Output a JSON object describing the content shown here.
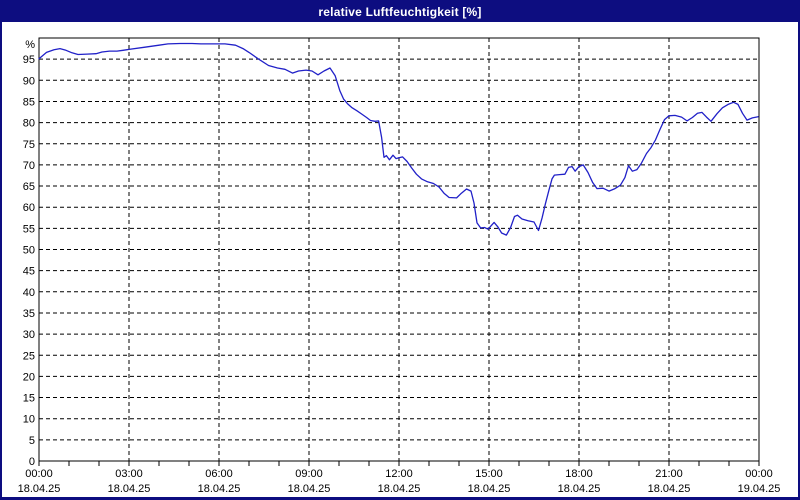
{
  "window": {
    "title": "relative Luftfeuchtigkeit [%]"
  },
  "colors": {
    "window_border": "#0d0d80",
    "titlebar_bg": "#0d0d80",
    "title_text": "#ffffff",
    "plot_bg": "#ffffff",
    "axis": "#000000",
    "grid": "#000000",
    "tick_label": "#000000",
    "line": "#2121c8"
  },
  "chart_data": {
    "type": "line",
    "title": "relative Luftfeuchtigkeit [%]",
    "ylabel": "%",
    "xlabel": "",
    "ylim": [
      0,
      100
    ],
    "xlim_hours": [
      0,
      24
    ],
    "grid": "dashed",
    "legend": "none",
    "y_ticks": [
      0,
      5,
      10,
      15,
      20,
      25,
      30,
      35,
      40,
      45,
      50,
      55,
      60,
      65,
      70,
      75,
      80,
      85,
      90,
      95
    ],
    "y_unit_label": "%",
    "x_minor_tick_hours": 1,
    "x_ticks": [
      {
        "hours": 0,
        "time": "00:00",
        "date": "18.04.25"
      },
      {
        "hours": 3,
        "time": "03:00",
        "date": "18.04.25"
      },
      {
        "hours": 6,
        "time": "06:00",
        "date": "18.04.25"
      },
      {
        "hours": 9,
        "time": "09:00",
        "date": "18.04.25"
      },
      {
        "hours": 12,
        "time": "12:00",
        "date": "18.04.25"
      },
      {
        "hours": 15,
        "time": "15:00",
        "date": "18.04.25"
      },
      {
        "hours": 18,
        "time": "18:00",
        "date": "18.04.25"
      },
      {
        "hours": 21,
        "time": "21:00",
        "date": "18.04.25"
      },
      {
        "hours": 24,
        "time": "00:00",
        "date": "19.04.25"
      }
    ],
    "series": [
      {
        "name": "relative Luftfeuchtigkeit",
        "color": "#2121c8",
        "points": [
          [
            0,
            95.1
          ],
          [
            0.25,
            96.6
          ],
          [
            0.5,
            97.2
          ],
          [
            0.7,
            97.5
          ],
          [
            0.9,
            97.1
          ],
          [
            1.1,
            96.5
          ],
          [
            1.3,
            96.1
          ],
          [
            1.6,
            96.2
          ],
          [
            1.9,
            96.3
          ],
          [
            2.1,
            96.7
          ],
          [
            2.35,
            96.9
          ],
          [
            2.6,
            96.9
          ],
          [
            2.8,
            97.1
          ],
          [
            3.0,
            97.3
          ],
          [
            3.5,
            97.8
          ],
          [
            4.0,
            98.3
          ],
          [
            4.3,
            98.6
          ],
          [
            4.7,
            98.7
          ],
          [
            5.1,
            98.7
          ],
          [
            5.4,
            98.6
          ],
          [
            5.8,
            98.6
          ],
          [
            6.2,
            98.6
          ],
          [
            6.55,
            98.3
          ],
          [
            6.8,
            97.5
          ],
          [
            7.0,
            96.6
          ],
          [
            7.3,
            95.1
          ],
          [
            7.65,
            93.5
          ],
          [
            7.95,
            92.9
          ],
          [
            8.2,
            92.6
          ],
          [
            8.45,
            91.7
          ],
          [
            8.65,
            92.2
          ],
          [
            8.9,
            92.4
          ],
          [
            9.1,
            92.2
          ],
          [
            9.3,
            91.3
          ],
          [
            9.5,
            92.2
          ],
          [
            9.7,
            92.9
          ],
          [
            9.87,
            91.1
          ],
          [
            10.03,
            87.5
          ],
          [
            10.15,
            85.6
          ],
          [
            10.28,
            84.5
          ],
          [
            10.42,
            83.6
          ],
          [
            10.6,
            82.8
          ],
          [
            10.76,
            82.0
          ],
          [
            10.92,
            81.2
          ],
          [
            11.05,
            80.5
          ],
          [
            11.2,
            80.3
          ],
          [
            11.32,
            80.4
          ],
          [
            11.42,
            76.5
          ],
          [
            11.5,
            71.8
          ],
          [
            11.58,
            72.2
          ],
          [
            11.68,
            71.2
          ],
          [
            11.8,
            72.3
          ],
          [
            11.9,
            71.5
          ],
          [
            12.0,
            71.7
          ],
          [
            12.12,
            71.9
          ],
          [
            12.27,
            70.8
          ],
          [
            12.42,
            69.3
          ],
          [
            12.58,
            67.8
          ],
          [
            12.75,
            66.7
          ],
          [
            12.95,
            66.0
          ],
          [
            13.15,
            65.6
          ],
          [
            13.33,
            64.8
          ],
          [
            13.5,
            63.3
          ],
          [
            13.67,
            62.3
          ],
          [
            13.92,
            62.2
          ],
          [
            14.08,
            63.3
          ],
          [
            14.25,
            64.3
          ],
          [
            14.4,
            63.8
          ],
          [
            14.5,
            61.0
          ],
          [
            14.6,
            56.3
          ],
          [
            14.72,
            55.1
          ],
          [
            14.85,
            55.2
          ],
          [
            14.97,
            54.8
          ],
          [
            15.08,
            55.7
          ],
          [
            15.17,
            56.4
          ],
          [
            15.3,
            55.3
          ],
          [
            15.42,
            53.9
          ],
          [
            15.58,
            53.4
          ],
          [
            15.72,
            55.2
          ],
          [
            15.85,
            57.8
          ],
          [
            15.95,
            58.1
          ],
          [
            16.1,
            57.2
          ],
          [
            16.3,
            56.8
          ],
          [
            16.5,
            56.5
          ],
          [
            16.65,
            54.5
          ],
          [
            16.77,
            57.5
          ],
          [
            16.88,
            60.8
          ],
          [
            17.0,
            64.1
          ],
          [
            17.1,
            66.7
          ],
          [
            17.18,
            67.6
          ],
          [
            17.35,
            67.7
          ],
          [
            17.53,
            67.8
          ],
          [
            17.65,
            69.4
          ],
          [
            17.77,
            69.6
          ],
          [
            17.87,
            68.5
          ],
          [
            18.0,
            69.6
          ],
          [
            18.14,
            70.0
          ],
          [
            18.3,
            68.2
          ],
          [
            18.45,
            65.9
          ],
          [
            18.6,
            64.4
          ],
          [
            18.8,
            64.5
          ],
          [
            19.0,
            63.8
          ],
          [
            19.2,
            64.4
          ],
          [
            19.38,
            65.2
          ],
          [
            19.53,
            67.0
          ],
          [
            19.65,
            69.8
          ],
          [
            19.78,
            68.5
          ],
          [
            19.93,
            68.9
          ],
          [
            20.08,
            70.4
          ],
          [
            20.25,
            72.7
          ],
          [
            20.4,
            74.1
          ],
          [
            20.55,
            75.9
          ],
          [
            20.7,
            78.4
          ],
          [
            20.85,
            80.7
          ],
          [
            21.0,
            81.6
          ],
          [
            21.2,
            81.7
          ],
          [
            21.42,
            81.3
          ],
          [
            21.6,
            80.4
          ],
          [
            21.78,
            81.2
          ],
          [
            21.95,
            82.2
          ],
          [
            22.1,
            82.4
          ],
          [
            22.25,
            81.3
          ],
          [
            22.4,
            80.3
          ],
          [
            22.6,
            82.1
          ],
          [
            22.78,
            83.5
          ],
          [
            22.97,
            84.3
          ],
          [
            23.15,
            84.8
          ],
          [
            23.3,
            84.3
          ],
          [
            23.45,
            82.2
          ],
          [
            23.6,
            80.6
          ],
          [
            23.78,
            81.1
          ],
          [
            23.97,
            81.4
          ]
        ]
      }
    ]
  }
}
